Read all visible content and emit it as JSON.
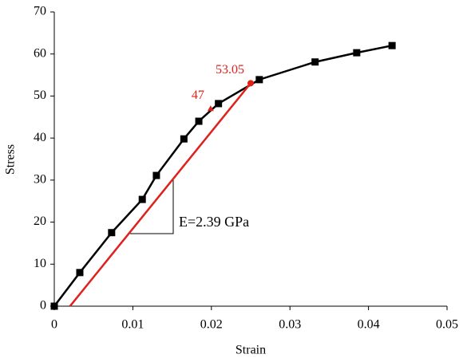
{
  "chart_data": {
    "type": "line",
    "x_label": "Strain",
    "y_label": "Stress",
    "xlim": [
      0,
      0.05
    ],
    "xticks": [
      0,
      0.01,
      0.02,
      0.03,
      0.04,
      0.05
    ],
    "ylim": [
      0,
      70
    ],
    "yticks": [
      0,
      10,
      20,
      30,
      40,
      50,
      60,
      70
    ],
    "grid": false,
    "series": [
      {
        "color": "#000000",
        "marker": "square",
        "x": [
          0,
          0.00325,
          0.0073,
          0.0112,
          0.013,
          0.0165,
          0.0184,
          0.0209,
          0.0261,
          0.0332,
          0.0385,
          0.043
        ],
        "values": [
          0,
          8.0,
          17.5,
          25.4,
          31.1,
          39.8,
          44.0,
          48.2,
          53.9,
          58.1,
          60.3,
          62.0
        ]
      },
      {
        "color": "#e0201b",
        "marker": "none",
        "x": [
          0.002,
          0.025
        ],
        "values": [
          0,
          53.05
        ]
      }
    ],
    "points": [
      {
        "x": 0.025,
        "y": 53.05,
        "marker": "circle",
        "color": "#e0201b"
      },
      {
        "x": 0.0199,
        "y": 47,
        "marker": "triangle",
        "color": "#e0201b"
      }
    ],
    "annotation": "E=2.39 GPa"
  }
}
